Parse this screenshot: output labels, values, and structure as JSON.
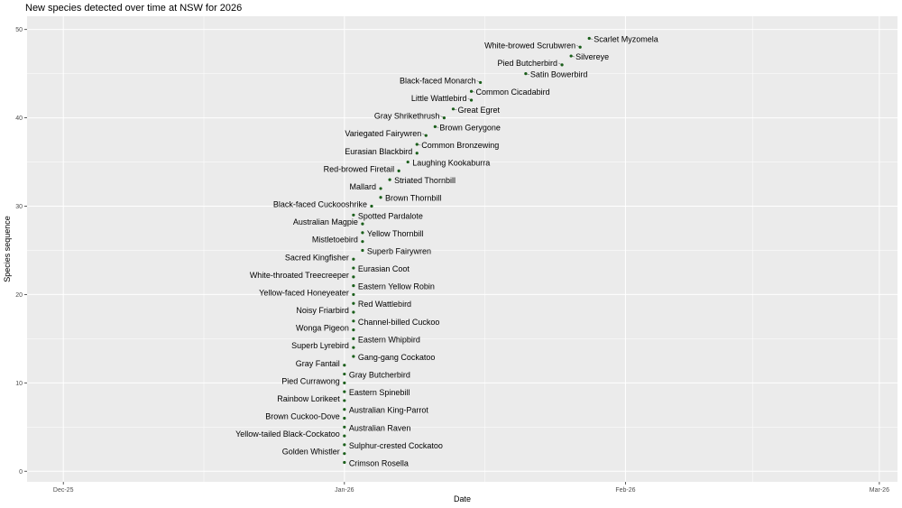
{
  "chart_data": {
    "type": "scatter",
    "title": "New species detected over time at NSW for 2026",
    "xlabel": "Date",
    "ylabel": "Species sequence",
    "x_ticks": [
      "Dec-25",
      "Jan-26",
      "Feb-26",
      "Mar-26"
    ],
    "x_tick_dates": [
      "2025-12-01",
      "2026-01-01",
      "2026-02-01",
      "2026-03-01"
    ],
    "x_range": [
      "2025-11-27",
      "2026-03-03"
    ],
    "y_ticks": [
      0,
      10,
      20,
      30,
      40,
      50
    ],
    "ylim": [
      -1.2,
      51.5
    ],
    "grid": true,
    "point_color": "#1a5e1a",
    "panel_color": "#ebebeb",
    "grid_color": "#ffffff",
    "points": [
      {
        "date": "2026-01-01",
        "seq": 1,
        "label": "Crimson Rosella"
      },
      {
        "date": "2026-01-01",
        "seq": 2,
        "label": "Golden Whistler"
      },
      {
        "date": "2026-01-01",
        "seq": 3,
        "label": "Sulphur-crested Cockatoo"
      },
      {
        "date": "2026-01-01",
        "seq": 4,
        "label": "Yellow-tailed Black-Cockatoo"
      },
      {
        "date": "2026-01-01",
        "seq": 5,
        "label": "Australian Raven"
      },
      {
        "date": "2026-01-01",
        "seq": 6,
        "label": "Brown Cuckoo-Dove"
      },
      {
        "date": "2026-01-01",
        "seq": 7,
        "label": "Australian King-Parrot"
      },
      {
        "date": "2026-01-01",
        "seq": 8,
        "label": "Rainbow Lorikeet"
      },
      {
        "date": "2026-01-01",
        "seq": 9,
        "label": "Eastern Spinebill"
      },
      {
        "date": "2026-01-01",
        "seq": 10,
        "label": "Pied Currawong"
      },
      {
        "date": "2026-01-01",
        "seq": 11,
        "label": "Gray Butcherbird"
      },
      {
        "date": "2026-01-01",
        "seq": 12,
        "label": "Gray Fantail"
      },
      {
        "date": "2026-01-02",
        "seq": 13,
        "label": "Gang-gang Cockatoo"
      },
      {
        "date": "2026-01-02",
        "seq": 14,
        "label": "Superb Lyrebird"
      },
      {
        "date": "2026-01-02",
        "seq": 15,
        "label": "Eastern Whipbird"
      },
      {
        "date": "2026-01-02",
        "seq": 16,
        "label": "Wonga Pigeon"
      },
      {
        "date": "2026-01-02",
        "seq": 17,
        "label": "Channel-billed Cuckoo"
      },
      {
        "date": "2026-01-02",
        "seq": 18,
        "label": "Noisy Friarbird"
      },
      {
        "date": "2026-01-02",
        "seq": 19,
        "label": "Red Wattlebird"
      },
      {
        "date": "2026-01-02",
        "seq": 20,
        "label": "Yellow-faced Honeyeater"
      },
      {
        "date": "2026-01-02",
        "seq": 21,
        "label": "Eastern Yellow Robin"
      },
      {
        "date": "2026-01-02",
        "seq": 22,
        "label": "White-throated Treecreeper"
      },
      {
        "date": "2026-01-02",
        "seq": 23,
        "label": "Eurasian Coot"
      },
      {
        "date": "2026-01-02",
        "seq": 24,
        "label": "Sacred Kingfisher"
      },
      {
        "date": "2026-01-03",
        "seq": 25,
        "label": "Superb Fairywren"
      },
      {
        "date": "2026-01-03",
        "seq": 26,
        "label": "Mistletoebird"
      },
      {
        "date": "2026-01-03",
        "seq": 27,
        "label": "Yellow Thornbill"
      },
      {
        "date": "2026-01-03",
        "seq": 28,
        "label": "Australian Magpie"
      },
      {
        "date": "2026-01-02",
        "seq": 29,
        "label": "Spotted Pardalote"
      },
      {
        "date": "2026-01-04",
        "seq": 30,
        "label": "Black-faced Cuckooshrike"
      },
      {
        "date": "2026-01-05",
        "seq": 31,
        "label": "Brown Thornbill"
      },
      {
        "date": "2026-01-05",
        "seq": 32,
        "label": "Mallard"
      },
      {
        "date": "2026-01-06",
        "seq": 33,
        "label": "Striated Thornbill"
      },
      {
        "date": "2026-01-07",
        "seq": 34,
        "label": "Red-browed Firetail"
      },
      {
        "date": "2026-01-08",
        "seq": 35,
        "label": "Laughing Kookaburra"
      },
      {
        "date": "2026-01-09",
        "seq": 36,
        "label": "Eurasian Blackbird"
      },
      {
        "date": "2026-01-09",
        "seq": 37,
        "label": "Common Bronzewing"
      },
      {
        "date": "2026-01-10",
        "seq": 38,
        "label": "Variegated Fairywren"
      },
      {
        "date": "2026-01-11",
        "seq": 39,
        "label": "Brown Gerygone"
      },
      {
        "date": "2026-01-12",
        "seq": 40,
        "label": "Gray Shrikethrush"
      },
      {
        "date": "2026-01-13",
        "seq": 41,
        "label": "Great Egret"
      },
      {
        "date": "2026-01-15",
        "seq": 42,
        "label": "Little Wattlebird"
      },
      {
        "date": "2026-01-15",
        "seq": 43,
        "label": "Common Cicadabird"
      },
      {
        "date": "2026-01-16",
        "seq": 44,
        "label": "Black-faced Monarch"
      },
      {
        "date": "2026-01-21",
        "seq": 45,
        "label": "Satin Bowerbird"
      },
      {
        "date": "2026-01-25",
        "seq": 46,
        "label": "Pied Butcherbird"
      },
      {
        "date": "2026-01-26",
        "seq": 47,
        "label": "Silvereye"
      },
      {
        "date": "2026-01-27",
        "seq": 48,
        "label": "White-browed Scrubwren"
      },
      {
        "date": "2026-01-28",
        "seq": 49,
        "label": "Scarlet Myzomela"
      }
    ]
  }
}
